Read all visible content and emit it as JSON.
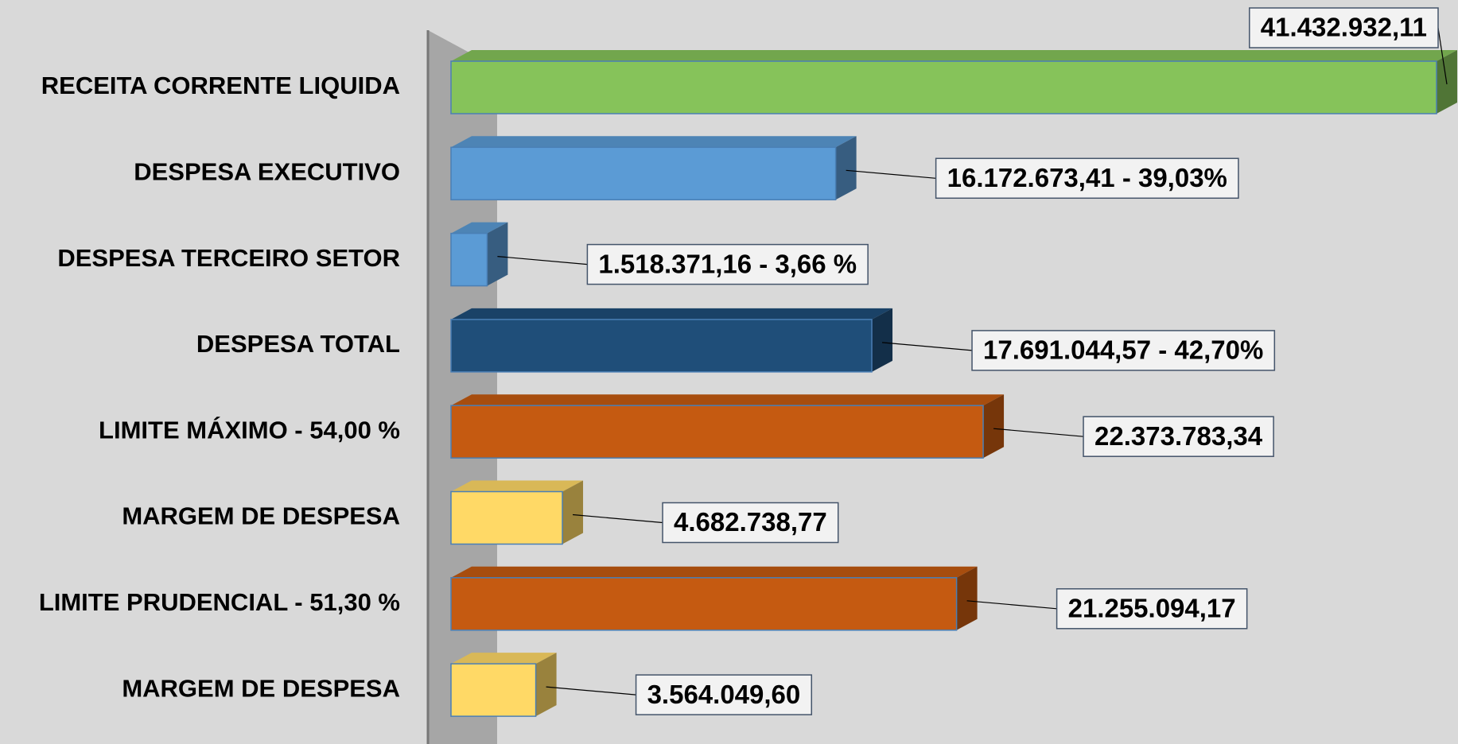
{
  "chart_data": {
    "type": "bar",
    "orientation": "horizontal",
    "categories": [
      "RECEITA CORRENTE LIQUIDA",
      "DESPESA EXECUTIVO",
      "DESPESA TERCEIRO SETOR",
      "DESPESA TOTAL",
      "LIMITE MÁXIMO - 54,00 %",
      "MARGEM DE DESPESA",
      "LIMITE PRUDENCIAL - 51,30 %",
      "MARGEM DE DESPESA"
    ],
    "values": [
      41432932.11,
      16172673.41,
      1518371.16,
      17691044.57,
      22373783.34,
      4682738.77,
      21255094.17,
      3564049.6
    ],
    "value_labels": [
      "41.432.932,11",
      "16.172.673,41 - 39,03%",
      "1.518.371,16 - 3,66 %",
      "17.691.044,57 - 42,70%",
      "22.373.783,34",
      "4.682.738,77",
      "21.255.094,17",
      "3.564.049,60"
    ],
    "colors": [
      "#86c35a",
      "#5b9bd5",
      "#5b9bd5",
      "#1f4e79",
      "#c55a11",
      "#ffd966",
      "#c55a11",
      "#ffd966"
    ]
  }
}
